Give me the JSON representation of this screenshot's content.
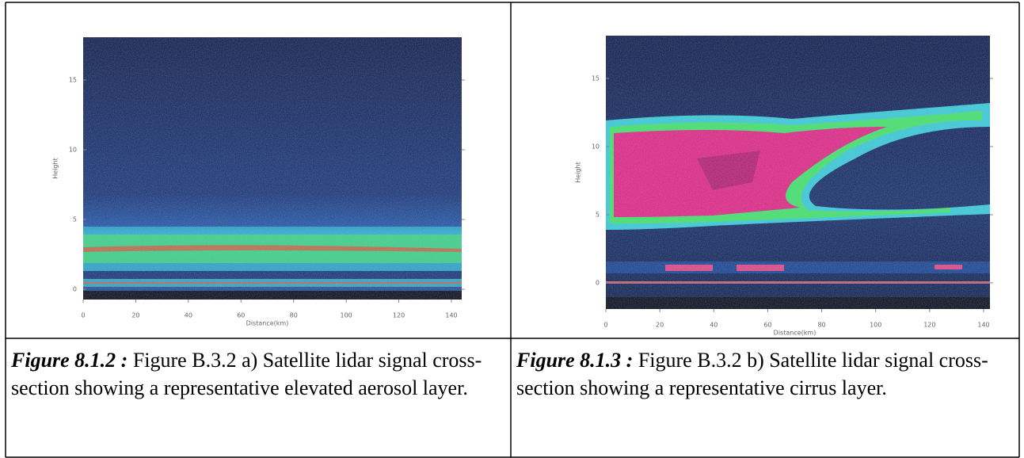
{
  "figures": [
    {
      "image": {
        "y_axis_label": "Height",
        "y_ticks": [
          "0",
          "5",
          "10",
          "15"
        ],
        "x_axis_label": "Distance(km)",
        "x_ticks": [
          "0",
          "20",
          "40",
          "60",
          "80",
          "100",
          "120",
          "140"
        ]
      },
      "caption": {
        "label": "Figure 8.1.2 :",
        "text": "Figure B.3.2 a) Satellite lidar signal cross-section showing a representative elevated aerosol layer."
      }
    },
    {
      "image": {
        "y_axis_label": "Height",
        "y_ticks": [
          "0",
          "5",
          "10",
          "15"
        ],
        "x_axis_label": "Distance(km)",
        "x_ticks": [
          "0",
          "20",
          "40",
          "60",
          "80",
          "100",
          "120",
          "140"
        ]
      },
      "caption": {
        "label": "Figure 8.1.3 :",
        "text": "Figure B.3.2 b) Satellite lidar signal cross-section showing a representative cirrus layer."
      }
    }
  ]
}
